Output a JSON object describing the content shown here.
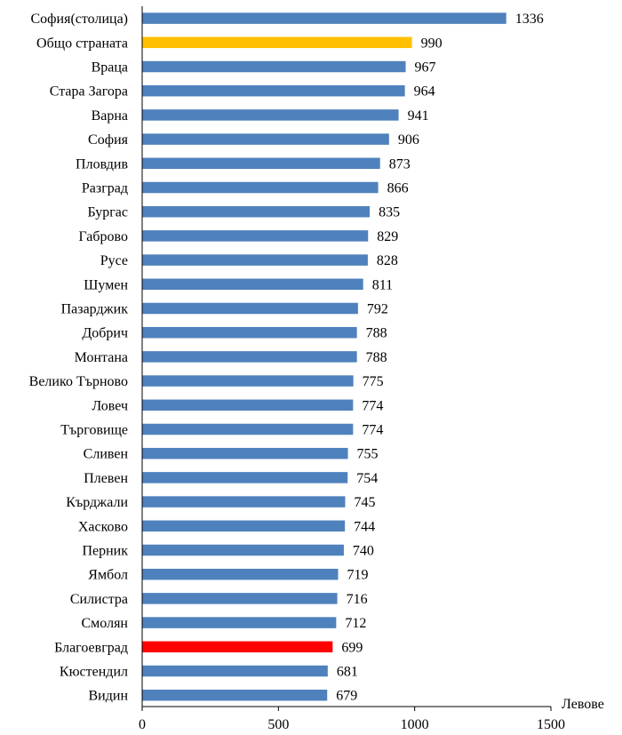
{
  "chart_data": {
    "type": "bar",
    "orientation": "horizontal",
    "categories": [
      "София(столица)",
      "Общо страната",
      "Враца",
      "Стара Загора",
      "Варна",
      "София",
      "Пловдив",
      "Разград",
      "Бургас",
      "Габрово",
      "Русе",
      "Шумен",
      "Пазарджик",
      "Добрич",
      "Монтана",
      "Велико Търново",
      "Ловеч",
      "Търговище",
      "Сливен",
      "Плевен",
      "Кърджали",
      "Хасково",
      "Перник",
      "Ямбол",
      "Силистра",
      "Смолян",
      "Благоевград",
      "Кюстендил",
      "Видин"
    ],
    "values": [
      1336,
      990,
      967,
      964,
      941,
      906,
      873,
      866,
      835,
      829,
      828,
      811,
      792,
      788,
      788,
      775,
      774,
      774,
      755,
      754,
      745,
      744,
      740,
      719,
      716,
      712,
      699,
      681,
      679
    ],
    "value_labels": [
      "1336",
      "990",
      "967",
      "964",
      "941",
      "906",
      "873",
      "866",
      "835",
      "829",
      "828",
      "811",
      "792",
      "788",
      "788",
      "775",
      "774",
      "774",
      "755",
      "754",
      "745",
      "744",
      "740",
      "719",
      "716",
      "712",
      "699",
      "681",
      "679"
    ],
    "bar_colors": {
      "default": "#4F81BD",
      "Общо страната": "#FFC000",
      "Благоевград": "#FF0000"
    },
    "xlim": [
      0,
      1500
    ],
    "x_ticks": [
      0,
      500,
      1000,
      1500
    ],
    "x_tick_labels": [
      "0",
      "500",
      "1000",
      "1500"
    ],
    "xlabel": "Левове",
    "ylabel": "",
    "title": "",
    "grid": false,
    "legend": "none"
  }
}
